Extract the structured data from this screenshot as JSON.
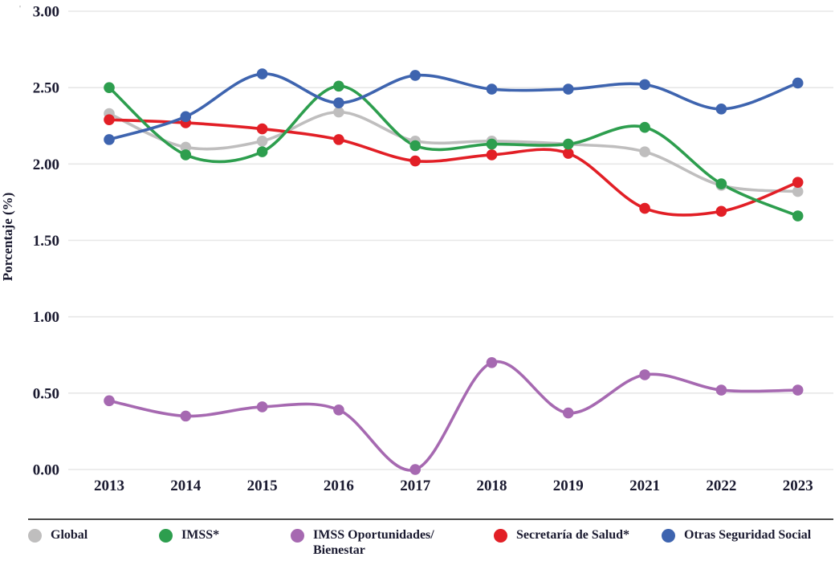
{
  "figure": {
    "stray_mark": "'",
    "ylabel": "Porcentaje (%)"
  },
  "chart_data": {
    "type": "line",
    "title": "",
    "xlabel": "",
    "ylabel": "Porcentaje (%)",
    "ylim": [
      0.0,
      3.0
    ],
    "yticks": [
      "0.00",
      "0.50",
      "1.00",
      "1.50",
      "2.00",
      "2.50",
      "3.00"
    ],
    "grid": "horizontal-only",
    "line_style": "smooth-spline-with-markers",
    "legend_position": "bottom",
    "categories": [
      "2013",
      "2014",
      "2015",
      "2016",
      "2017",
      "2018",
      "2019",
      "2021",
      "2022",
      "2023"
    ],
    "series": [
      {
        "name": "Global",
        "legend_label": "Global",
        "color": "#bfbebe",
        "values": [
          2.33,
          2.11,
          2.15,
          2.34,
          2.15,
          2.15,
          2.13,
          2.08,
          1.86,
          1.82
        ]
      },
      {
        "name": "IMSS*",
        "legend_label": "IMSS*",
        "color": "#2d9e4e",
        "values": [
          2.5,
          2.06,
          2.08,
          2.51,
          2.12,
          2.13,
          2.13,
          2.24,
          1.87,
          1.66
        ]
      },
      {
        "name": "IMSS Oportunidades/Bienestar",
        "legend_label": "IMSS Oportunidades/\nBienestar",
        "color": "#a669b1",
        "values": [
          0.45,
          0.35,
          0.41,
          0.39,
          0.0,
          0.7,
          0.37,
          0.62,
          0.52,
          0.52
        ]
      },
      {
        "name": "Secretaría de Salud*",
        "legend_label": "Secretaría de Salud*",
        "color": "#e21f26",
        "values": [
          2.29,
          2.27,
          2.23,
          2.16,
          2.02,
          2.06,
          2.07,
          1.71,
          1.69,
          1.88
        ]
      },
      {
        "name": "Otras Seguridad Social",
        "legend_label": "Otras Seguridad Social",
        "color": "#3e64af",
        "values": [
          2.16,
          2.31,
          2.59,
          2.4,
          2.58,
          2.49,
          2.49,
          2.52,
          2.36,
          2.53
        ]
      }
    ]
  }
}
